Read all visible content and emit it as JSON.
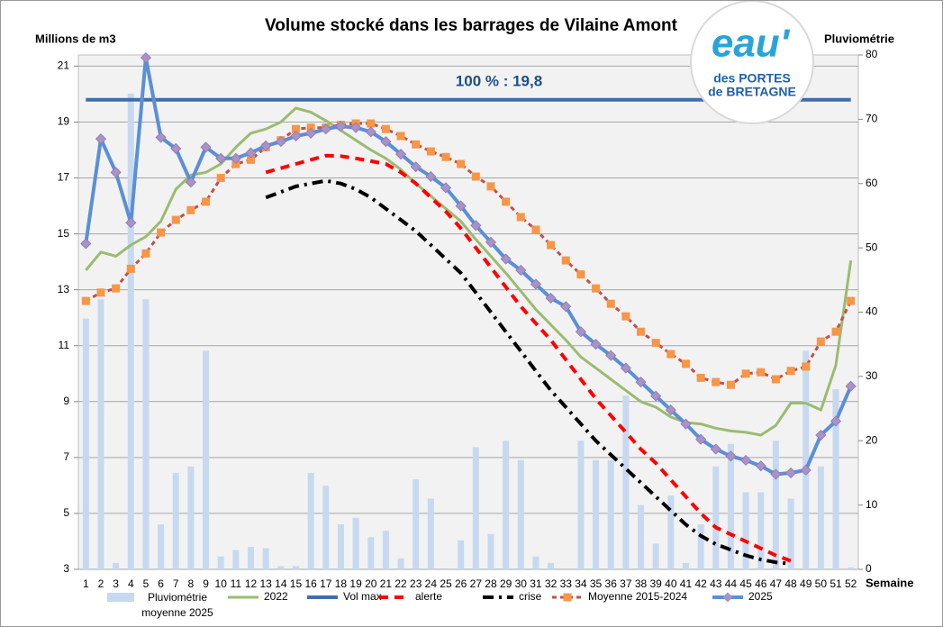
{
  "chart_data": {
    "type": "combo",
    "title": "Volume stocké dans les barrages de Vilaine Amont",
    "y_label": "Millions de m3",
    "y2_label": "Pluviométrie",
    "x_label": "Semaine",
    "annotation": "100 % : 19,8",
    "categories": [
      "1",
      "2",
      "3",
      "4",
      "5",
      "6",
      "7",
      "8",
      "9",
      "10",
      "11",
      "12",
      "13",
      "14",
      "15",
      "16",
      "17",
      "18",
      "19",
      "20",
      "21",
      "22",
      "23",
      "24",
      "25",
      "26",
      "27",
      "28",
      "29",
      "30",
      "31",
      "32",
      "33",
      "34",
      "35",
      "36",
      "37",
      "38",
      "39",
      "40",
      "41",
      "42",
      "43",
      "44",
      "45",
      "46",
      "47",
      "48",
      "49",
      "50",
      "51",
      "52"
    ],
    "ylim": [
      3,
      21.4
    ],
    "yticks": [
      3,
      5,
      7,
      9,
      11,
      13,
      15,
      17,
      19,
      21
    ],
    "y2lim": [
      0,
      80
    ],
    "y2ticks": [
      0,
      10,
      20,
      30,
      40,
      50,
      60,
      70,
      80
    ],
    "grid": true,
    "legend": "bottom",
    "series": [
      {
        "name": "Pluviométrie moyenne 2025",
        "type": "bar",
        "axis": "y2",
        "color": "#c6d9f1",
        "values": [
          39,
          42,
          1,
          74,
          42,
          7,
          15,
          16,
          34,
          2,
          3,
          3.5,
          3.3,
          0.5,
          0.5,
          15,
          13,
          7,
          8,
          5,
          6,
          1.7,
          14,
          11,
          0,
          4.5,
          19,
          5.5,
          20,
          17,
          2,
          1,
          0,
          20,
          17,
          17,
          27,
          10,
          4,
          11.5,
          1,
          7,
          16,
          19.5,
          12,
          12,
          20,
          11,
          34,
          16,
          28,
          0.3
        ]
      },
      {
        "name": "2022",
        "type": "line",
        "color": "#9bbb70",
        "width": 3,
        "values": [
          13.7,
          14.35,
          14.2,
          14.6,
          14.9,
          15.45,
          16.6,
          17.1,
          17.2,
          17.5,
          18.1,
          18.6,
          18.75,
          19.0,
          19.5,
          19.35,
          19.05,
          18.7,
          18.35,
          18.0,
          17.7,
          17.3,
          16.8,
          16.35,
          15.9,
          15.45,
          14.8,
          14.2,
          13.6,
          12.95,
          12.3,
          11.75,
          11.2,
          10.6,
          10.2,
          9.8,
          9.4,
          9.0,
          8.8,
          8.45,
          8.25,
          8.2,
          8.05,
          7.95,
          7.9,
          7.8,
          8.15,
          8.95,
          8.95,
          8.7,
          10.3,
          14.05
        ]
      },
      {
        "name": "Vol max",
        "type": "line",
        "color": "#3e6eae",
        "width": 4,
        "values": [
          19.8,
          19.8,
          19.8,
          19.8,
          19.8,
          19.8,
          19.8,
          19.8,
          19.8,
          19.8,
          19.8,
          19.8,
          19.8,
          19.8,
          19.8,
          19.8,
          19.8,
          19.8,
          19.8,
          19.8,
          19.8,
          19.8,
          19.8,
          19.8,
          19.8,
          19.8,
          19.8,
          19.8,
          19.8,
          19.8,
          19.8,
          19.8,
          19.8,
          19.8,
          19.8,
          19.8,
          19.8,
          19.8,
          19.8,
          19.8,
          19.8,
          19.8,
          19.8,
          19.8,
          19.8,
          19.8,
          19.8,
          19.8,
          19.8,
          19.8,
          19.8,
          19.8
        ]
      },
      {
        "name": "alerte",
        "type": "line",
        "color": "#ff0000",
        "width": 4,
        "dash": "10 7",
        "values": [
          null,
          null,
          null,
          null,
          null,
          null,
          null,
          null,
          null,
          null,
          null,
          null,
          17.2,
          17.35,
          17.5,
          17.65,
          17.8,
          17.78,
          17.7,
          17.6,
          17.5,
          17.2,
          16.8,
          16.3,
          15.8,
          15.2,
          14.5,
          13.8,
          13.1,
          12.4,
          11.8,
          11.2,
          10.5,
          9.8,
          9.1,
          8.5,
          7.9,
          7.3,
          6.8,
          6.2,
          5.6,
          5.0,
          4.5,
          4.25,
          4.0,
          3.75,
          3.5,
          3.3,
          null,
          null,
          null,
          null
        ]
      },
      {
        "name": "crise",
        "type": "line",
        "color": "#000000",
        "width": 4,
        "dash": "12 6 3 6",
        "values": [
          null,
          null,
          null,
          null,
          null,
          null,
          null,
          null,
          null,
          null,
          null,
          null,
          16.3,
          16.5,
          16.7,
          16.8,
          16.9,
          16.8,
          16.6,
          16.3,
          15.9,
          15.5,
          15.1,
          14.6,
          14.1,
          13.6,
          12.9,
          12.2,
          11.5,
          10.8,
          10.1,
          9.4,
          8.8,
          8.2,
          7.6,
          7.1,
          6.6,
          6.1,
          5.6,
          5.1,
          4.6,
          4.2,
          3.9,
          3.7,
          3.5,
          3.35,
          3.25,
          3.2,
          null,
          null,
          null,
          null
        ]
      },
      {
        "name": "Moyenne 2015-2024",
        "type": "line",
        "color": "#c0504d",
        "width": 3,
        "dash": "5 4",
        "marker": "square",
        "marker_color": "#f79646",
        "values": [
          12.6,
          12.9,
          13.05,
          13.75,
          14.3,
          15.05,
          15.5,
          15.85,
          16.15,
          17.0,
          17.5,
          17.65,
          18.1,
          18.35,
          18.75,
          18.8,
          18.8,
          18.9,
          18.95,
          18.95,
          18.75,
          18.5,
          18.2,
          17.95,
          17.75,
          17.5,
          17.05,
          16.7,
          16.15,
          15.6,
          15.15,
          14.6,
          14.05,
          13.55,
          13.05,
          12.5,
          12.05,
          11.5,
          11.1,
          10.7,
          10.35,
          9.85,
          9.7,
          9.6,
          10.0,
          10.05,
          9.8,
          10.1,
          10.25,
          11.15,
          11.5,
          12.6
        ]
      },
      {
        "name": "2025",
        "type": "line",
        "color": "#5b8fd6",
        "width": 4,
        "marker": "diamond",
        "marker_color": "#a892c8",
        "values": [
          14.65,
          18.4,
          17.2,
          15.4,
          21.3,
          18.45,
          18.05,
          16.85,
          18.1,
          17.7,
          17.7,
          17.9,
          18.15,
          18.3,
          18.5,
          18.6,
          18.75,
          18.85,
          18.8,
          18.65,
          18.3,
          17.85,
          17.4,
          17.05,
          16.65,
          16.0,
          15.3,
          14.7,
          14.1,
          13.7,
          13.2,
          12.7,
          12.4,
          11.5,
          11.05,
          10.65,
          10.2,
          9.7,
          9.2,
          8.7,
          8.2,
          7.65,
          7.3,
          7.05,
          6.9,
          6.7,
          6.4,
          6.45,
          6.55,
          7.8,
          8.3,
          9.55
        ]
      }
    ]
  },
  "logo": {
    "main": "eau'",
    "line1": "des PORTES",
    "line2": "de BRETAGNE"
  }
}
